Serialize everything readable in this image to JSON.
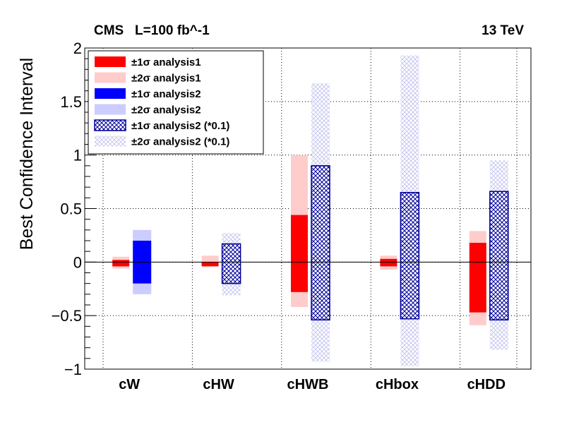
{
  "header": {
    "experiment": "CMS   L=100 fb^-1",
    "energy": "13 TeV"
  },
  "chart_data": {
    "type": "bar",
    "title": "",
    "ylabel": "Best Confidence Interval",
    "xlabel": "",
    "ylim": [
      -1,
      2
    ],
    "categories": [
      "cW",
      "cHW",
      "cHWB",
      "cHbox",
      "cHDD"
    ],
    "yticks": [
      "−1",
      "−0.5",
      "0",
      "0.5",
      "1",
      "1.5",
      "2"
    ],
    "grid": true,
    "legend_position": "top-left",
    "series": [
      {
        "name": "±1σ analysis1",
        "color": "#ff0000",
        "style": "solid",
        "intervals": [
          [
            -0.04,
            0.02
          ],
          [
            -0.04,
            0.0
          ],
          [
            -0.28,
            0.44
          ],
          [
            -0.04,
            0.03
          ],
          [
            -0.47,
            0.18
          ]
        ]
      },
      {
        "name": "±2σ analysis1",
        "color": "#ffcccc",
        "style": "solid",
        "intervals": [
          [
            -0.06,
            0.05
          ],
          [
            null,
            0.06
          ],
          [
            -0.42,
            1.0
          ],
          [
            -0.07,
            0.06
          ],
          [
            -0.59,
            0.29
          ]
        ]
      },
      {
        "name": "±1σ analysis2",
        "color": "#0000ff",
        "style": "solid",
        "intervals": [
          [
            -0.2,
            0.2
          ],
          null,
          null,
          null,
          null
        ]
      },
      {
        "name": "±2σ analysis2",
        "color": "#ccccff",
        "style": "solid",
        "intervals": [
          [
            -0.3,
            0.3
          ],
          null,
          null,
          null,
          null
        ]
      },
      {
        "name": "±1σ analysis2 (*0.1)",
        "color": "#000099",
        "style": "hatched",
        "intervals": [
          null,
          [
            -0.2,
            0.17
          ],
          [
            -0.54,
            0.9
          ],
          [
            -0.53,
            0.65
          ],
          [
            -0.54,
            0.66
          ]
        ]
      },
      {
        "name": "±2σ analysis2 (*0.1)",
        "color": "#c8c8f0",
        "style": "hatched-light",
        "intervals": [
          null,
          [
            -0.31,
            0.27
          ],
          [
            -0.93,
            1.67
          ],
          [
            -0.97,
            1.93
          ],
          [
            -0.82,
            0.95
          ]
        ]
      }
    ]
  }
}
